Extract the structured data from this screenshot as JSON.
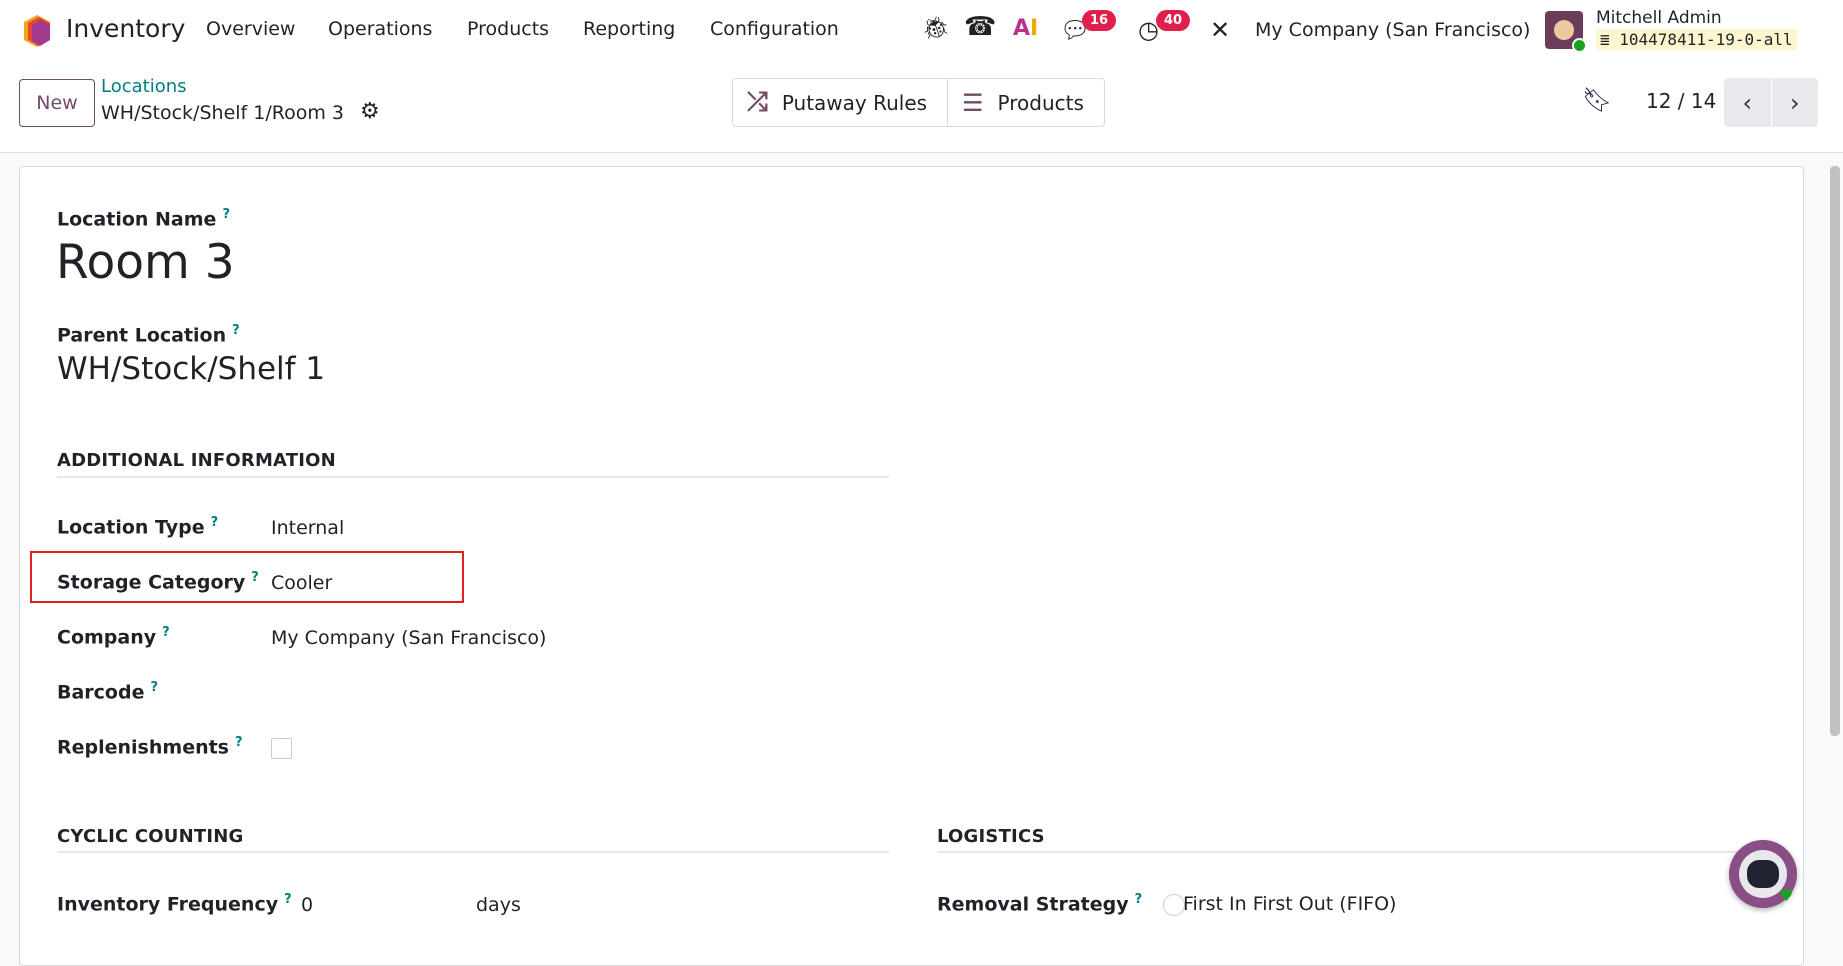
{
  "navbar": {
    "app_name": "Inventory",
    "menu": [
      "Overview",
      "Operations",
      "Products",
      "Reporting",
      "Configuration"
    ],
    "chat_badge": "16",
    "activity_badge": "40",
    "company": "My Company (San Francisco)",
    "user_name": "Mitchell Admin",
    "database": "104478411-19-0-all",
    "icons": [
      "bug-icon",
      "phone-icon",
      "ai-icon",
      "chat-icon",
      "clock-icon",
      "tools-icon"
    ]
  },
  "control_panel": {
    "new_label": "New",
    "breadcrumb_parent": "Locations",
    "breadcrumb_current": "WH/Stock/Shelf 1/Room 3",
    "putaway_label": "Putaway Rules",
    "products_label": "Products",
    "pager": "12 / 14"
  },
  "form": {
    "location_name_label": "Location Name",
    "location_name": "Room 3",
    "parent_label": "Parent Location",
    "parent_value": "WH/Stock/Shelf 1",
    "additional_title": "ADDITIONAL INFORMATION",
    "fields": [
      {
        "label": "Location Type",
        "value": "Internal"
      },
      {
        "label": "Storage Category",
        "value": "Cooler"
      },
      {
        "label": "Company",
        "value": "My Company (San Francisco)"
      },
      {
        "label": "Barcode",
        "value": ""
      },
      {
        "label": "Replenishments",
        "checked": false
      }
    ],
    "cyclic_title": "CYCLIC COUNTING",
    "inv_freq_label": "Inventory Frequency",
    "inv_freq_value": "0",
    "inv_freq_unit": "days",
    "logistics_title": "LOGISTICS",
    "removal_label": "Removal Strategy",
    "removal_value": "First In First Out (FIFO)"
  },
  "colors": {
    "brand": "#714b67",
    "link": "#017e84",
    "badge": "#e0204a",
    "highlight_box": "#e02020"
  }
}
